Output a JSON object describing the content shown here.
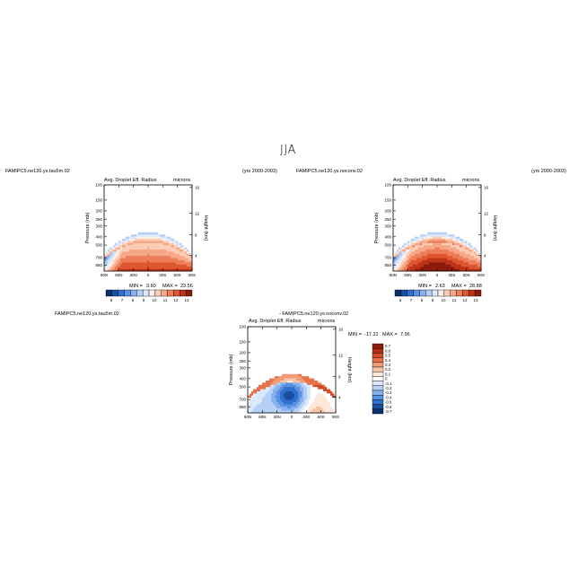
{
  "figure": {
    "title": "JJA"
  },
  "panels": [
    {
      "left_label": "FAMIPC5.ne120.ys.tau5m.02",
      "right_label": "(yrs 2000-2003)",
      "center_label": "Avg. Droplet Eff. Radius",
      "units": "microns",
      "ylabel": "Pressure (mb)",
      "ylabel_right": "Height (km)",
      "min_label": "MIN =",
      "min_value": "3.60",
      "max_label": "MAX =",
      "max_value": "23.56"
    },
    {
      "left_label": "FAMIPC5.ne120.ys.noconv.02",
      "right_label": "(yrs 2000-2003)",
      "center_label": "Avg. Droplet Eff. Radius",
      "units": "microns",
      "ylabel": "Pressure (mb)",
      "ylabel_right": "Height (km)",
      "min_label": "MIN =",
      "min_value": "2.63",
      "max_label": "MAX =",
      "max_value": "28.88"
    },
    {
      "left_label": "FAMIPC5.ne120.ys.tau5m.02",
      "diff_label": "- FAMIPC5.ne120.ys.noconv.02",
      "center_label": "Avg. Droplet Eff. Radius",
      "units": "microns",
      "ylabel": "Pressure (mb)",
      "ylabel_right": "Height (km)",
      "min_label": "MIN =",
      "min_value": "-17.22",
      "max_label": "MAX =",
      "max_value": "7.96"
    }
  ],
  "chart_data": [
    {
      "type": "heatmap",
      "panel": "FAMIPC5.ne120.ys.tau5m.02",
      "x_ticks": [
        "90N",
        "60N",
        "30N",
        "0",
        "30S",
        "60S",
        "90S"
      ],
      "y_ticks": [
        "100",
        "150",
        "200",
        "250",
        "300",
        "400",
        "500",
        "700",
        "850"
      ],
      "y_ticks_right": [
        "16",
        "12",
        "8",
        "4"
      ],
      "colorbar_ticks": [
        "6",
        "7",
        "8",
        "9",
        "10",
        "11",
        "12",
        "13"
      ],
      "min": 3.6,
      "max": 23.56
    },
    {
      "type": "heatmap",
      "panel": "FAMIPC5.ne120.ys.noconv.02",
      "x_ticks": [
        "90N",
        "60N",
        "30N",
        "0",
        "30S",
        "60S",
        "90S"
      ],
      "y_ticks": [
        "100",
        "150",
        "200",
        "250",
        "300",
        "400",
        "500",
        "700",
        "850"
      ],
      "y_ticks_right": [
        "16",
        "12",
        "8",
        "4"
      ],
      "colorbar_ticks": [
        "6",
        "7",
        "8",
        "9",
        "10",
        "11",
        "12",
        "13"
      ],
      "min": 2.63,
      "max": 28.88
    },
    {
      "type": "heatmap",
      "panel": "difference",
      "x_ticks": [
        "90N",
        "60N",
        "30N",
        "0",
        "30S",
        "60S",
        "90S"
      ],
      "y_ticks": [
        "100",
        "150",
        "200",
        "250",
        "300",
        "400",
        "500",
        "700",
        "850"
      ],
      "y_ticks_right": [
        "16",
        "12",
        "8",
        "4"
      ],
      "colorbar_ticks": [
        "0.7",
        "0.6",
        "0.5",
        "0.4",
        "0.3",
        "0.2",
        "0.1",
        "0",
        "-0.1",
        "-0.2",
        "-0.3",
        "-0.4",
        "-0.5",
        "-0.6",
        "-0.7"
      ],
      "min": -17.22,
      "max": 7.96
    }
  ],
  "colors": {
    "scale": [
      "#08306b",
      "#1a4fa0",
      "#2f6fd0",
      "#5a90e2",
      "#87b0ee",
      "#b5cff6",
      "#dce8fb",
      "#fdeee6",
      "#fbcdb6",
      "#f6a788",
      "#ee7d59",
      "#dc5630",
      "#bd3317",
      "#8d1b0b"
    ],
    "diff_scale": [
      "#8d1b0b",
      "#b52a14",
      "#d34a26",
      "#e6724a",
      "#f19a76",
      "#f8c4a9",
      "#fde7da",
      "#ffffff",
      "#dce8fb",
      "#b5cff6",
      "#87b0ee",
      "#5a90e2",
      "#2f6fd0",
      "#1a4fa0",
      "#08306b"
    ]
  }
}
